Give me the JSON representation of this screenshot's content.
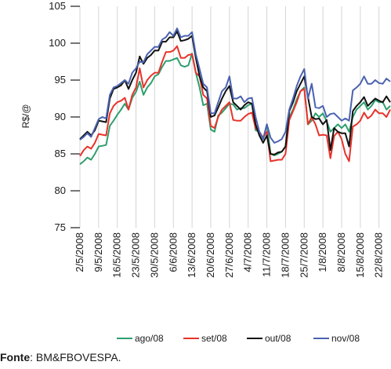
{
  "chart_data": {
    "type": "line",
    "title": "",
    "ylabel": "R$/@",
    "xlabel": "",
    "ylim": [
      75,
      105
    ],
    "yticks": [
      75,
      80,
      85,
      90,
      95,
      100,
      105
    ],
    "grid": "vertical-only",
    "legend_position": "bottom",
    "x": [
      "2/5/2008",
      "5/5/2008",
      "6/5/2008",
      "7/5/2008",
      "8/5/2008",
      "9/5/2008",
      "12/5/2008",
      "13/5/2008",
      "14/5/2008",
      "15/5/2008",
      "16/5/2008",
      "19/5/2008",
      "20/5/2008",
      "21/5/2008",
      "22/5/2008",
      "23/5/2008",
      "26/5/2008",
      "27/5/2008",
      "28/5/2008",
      "29/5/2008",
      "30/5/2008",
      "2/6/2008",
      "3/6/2008",
      "4/6/2008",
      "5/6/2008",
      "6/6/2008",
      "9/6/2008",
      "10/6/2008",
      "11/6/2008",
      "12/6/2008",
      "13/6/2008",
      "16/6/2008",
      "17/6/2008",
      "18/6/2008",
      "19/6/2008",
      "20/6/2008",
      "23/6/2008",
      "24/6/2008",
      "25/6/2008",
      "26/6/2008",
      "27/6/2008",
      "30/6/2008",
      "1/7/2008",
      "2/7/2008",
      "3/7/2008",
      "4/7/2008",
      "7/7/2008",
      "8/7/2008",
      "9/7/2008",
      "10/7/2008",
      "11/7/2008",
      "14/7/2008",
      "15/7/2008",
      "16/7/2008",
      "17/7/2008",
      "18/7/2008",
      "21/7/2008",
      "22/7/2008",
      "23/7/2008",
      "24/7/2008",
      "25/7/2008",
      "28/7/2008",
      "29/7/2008",
      "30/7/2008",
      "31/7/2008",
      "1/8/2008",
      "4/8/2008",
      "5/8/2008",
      "6/8/2008",
      "7/8/2008",
      "8/8/2008",
      "11/8/2008",
      "12/8/2008",
      "13/8/2008",
      "14/8/2008",
      "15/8/2008",
      "18/8/2008",
      "19/8/2008",
      "20/8/2008",
      "21/8/2008",
      "22/8/2008",
      "25/8/2008",
      "26/8/2008",
      "27/8/2008"
    ],
    "xtick_labels": [
      "2/5/2008",
      "9/5/2008",
      "16/5/2008",
      "23/5/2008",
      "30/5/2008",
      "6/6/2008",
      "13/6/2008",
      "20/6/2008",
      "27/6/2008",
      "4/7/2008",
      "11/7/2008",
      "18/7/2008",
      "25/7/2008",
      "1/8/2008",
      "8/8/2008",
      "15/8/2008",
      "22/8/2008"
    ],
    "series": [
      {
        "name": "ago/08",
        "color": "#2e9e6e",
        "values": [
          83.6,
          84.0,
          84.5,
          84.2,
          85.0,
          86.0,
          86.1,
          86.2,
          88.8,
          89.5,
          90.3,
          91.0,
          91.8,
          91.0,
          92.6,
          93.4,
          94.8,
          93.0,
          94.0,
          94.6,
          95.5,
          95.8,
          96.8,
          97.6,
          97.6,
          97.8,
          98.0,
          97.0,
          96.8,
          97.0,
          98.6,
          96.0,
          94.0,
          91.6,
          91.8,
          88.3,
          88.0,
          90.2,
          90.6,
          91.2,
          91.8,
          91.7,
          91.0,
          91.2,
          91.2,
          91.6,
          91.8,
          88.2,
          88.0,
          87.0,
          89.0,
          85.0,
          84.8,
          85.0,
          85.3,
          86.0,
          90.0,
          91.0,
          92.4,
          93.5,
          94.0,
          89.0,
          89.5,
          90.5,
          90.0,
          90.5,
          89.4,
          88.0,
          88.5,
          89.0,
          88.5,
          89.0,
          88.0,
          90.0,
          91.0,
          91.5,
          92.0,
          91.0,
          91.5,
          92.3,
          92.0,
          92.0,
          91.0,
          91.5
        ]
      },
      {
        "name": "set/08",
        "color": "#e8332a",
        "values": [
          84.7,
          85.5,
          86.0,
          85.7,
          86.5,
          87.7,
          87.6,
          87.5,
          90.5,
          91.5,
          92.0,
          92.2,
          92.6,
          91.0,
          93.0,
          94.0,
          96.6,
          94.0,
          95.0,
          95.6,
          96.0,
          96.0,
          97.5,
          98.8,
          98.8,
          99.0,
          99.6,
          98.0,
          98.0,
          98.4,
          98.5,
          96.0,
          95.5,
          93.0,
          92.5,
          88.8,
          88.5,
          90.0,
          91.0,
          91.5,
          92.0,
          89.6,
          89.5,
          89.5,
          90.0,
          90.4,
          90.6,
          88.5,
          88.0,
          87.2,
          88.0,
          84.0,
          84.1,
          84.2,
          84.2,
          85.0,
          89.6,
          90.8,
          92.0,
          93.5,
          93.8,
          89.0,
          90.0,
          89.0,
          87.5,
          87.6,
          87.5,
          84.4,
          87.4,
          88.0,
          87.0,
          85.0,
          84.0,
          88.7,
          89.0,
          89.5,
          90.6,
          89.8,
          90.2,
          91.0,
          90.5,
          90.5,
          90.0,
          91.0
        ]
      },
      {
        "name": "out/08",
        "color": "#111111",
        "values": [
          87.0,
          87.5,
          88.0,
          87.5,
          88.2,
          89.5,
          89.4,
          89.3,
          92.5,
          93.8,
          94.0,
          94.3,
          95.0,
          93.8,
          95.0,
          96.0,
          98.2,
          97.2,
          98.0,
          98.4,
          99.0,
          99.0,
          100.2,
          100.2,
          100.8,
          100.8,
          101.6,
          100.3,
          100.4,
          100.6,
          101.0,
          98.0,
          95.5,
          94.0,
          93.5,
          90.0,
          90.2,
          91.3,
          92.5,
          93.5,
          94.2,
          92.0,
          91.5,
          91.0,
          91.6,
          92.0,
          91.8,
          89.0,
          87.5,
          86.5,
          87.5,
          85.0,
          84.9,
          85.2,
          85.3,
          86.0,
          90.8,
          92.0,
          93.5,
          94.5,
          95.5,
          92.7,
          90.0,
          89.7,
          89.8,
          89.0,
          89.6,
          85.5,
          88.5,
          88.0,
          87.8,
          87.8,
          86.0,
          90.8,
          91.5,
          92.0,
          92.7,
          91.5,
          92.0,
          92.5,
          92.2,
          92.0,
          92.8,
          92.0
        ]
      },
      {
        "name": "nov/08",
        "color": "#4a62b0",
        "values": [
          86.9,
          87.3,
          87.8,
          87.3,
          88.5,
          89.7,
          90.0,
          89.8,
          93.0,
          94.0,
          94.2,
          94.6,
          95.0,
          94.5,
          96.0,
          96.6,
          97.5,
          97.4,
          98.5,
          99.0,
          99.5,
          99.5,
          100.5,
          100.8,
          101.5,
          101.0,
          102.0,
          100.8,
          101.0,
          101.0,
          101.5,
          98.5,
          96.5,
          94.5,
          94.0,
          90.5,
          90.5,
          92.0,
          93.5,
          94.0,
          95.5,
          92.5,
          92.5,
          92.8,
          92.0,
          92.5,
          92.6,
          90.0,
          88.0,
          87.0,
          89.0,
          87.2,
          86.5,
          86.7,
          87.0,
          88.0,
          91.0,
          92.5,
          94.2,
          95.5,
          96.5,
          92.5,
          94.5,
          91.3,
          91.2,
          91.5,
          90.0,
          90.4,
          90.5,
          90.0,
          89.5,
          89.8,
          89.5,
          93.6,
          94.0,
          94.5,
          95.5,
          94.5,
          94.5,
          95.0,
          94.6,
          94.5,
          95.2,
          94.8
        ]
      }
    ]
  },
  "source": {
    "label": "Fonte",
    "text": ": BM&FBOVESPA."
  }
}
